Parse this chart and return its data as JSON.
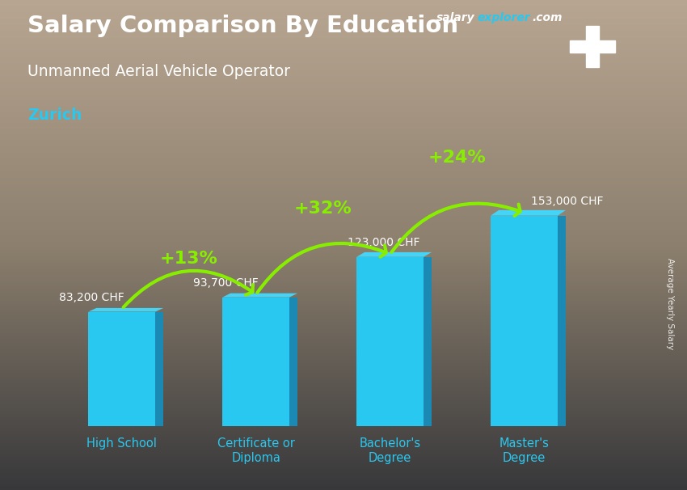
{
  "title_salary": "Salary Comparison By Education",
  "subtitle": "Unmanned Aerial Vehicle Operator",
  "location": "Zurich",
  "categories": [
    "High School",
    "Certificate or\nDiploma",
    "Bachelor's\nDegree",
    "Master's\nDegree"
  ],
  "values": [
    83200,
    93700,
    123000,
    153000
  ],
  "value_labels": [
    "83,200 CHF",
    "93,700 CHF",
    "123,000 CHF",
    "153,000 CHF"
  ],
  "pct_changes": [
    "+13%",
    "+32%",
    "+24%"
  ],
  "bar_color_face": "#29c8f0",
  "bar_color_side": "#1a8ab5",
  "bar_color_top": "#45d4f5",
  "pct_color": "#88ee00",
  "title_color": "#ffffff",
  "subtitle_color": "#ffffff",
  "location_color": "#29c8f0",
  "tick_label_color": "#29c8f0",
  "value_label_color": "#ffffff",
  "ylabel": "Average Yearly Salary",
  "bg_top": "#b8a898",
  "bg_bottom": "#3a3a3a",
  "ylim": [
    0,
    185000
  ],
  "brand_salary_color": "#ffffff",
  "brand_explorer_color": "#29c8f0",
  "brand_com_color": "#ffffff",
  "flag_red": "#e8192c",
  "arrow_lw": 3.0,
  "pct_fontsize": 16,
  "value_fontsize": 10
}
